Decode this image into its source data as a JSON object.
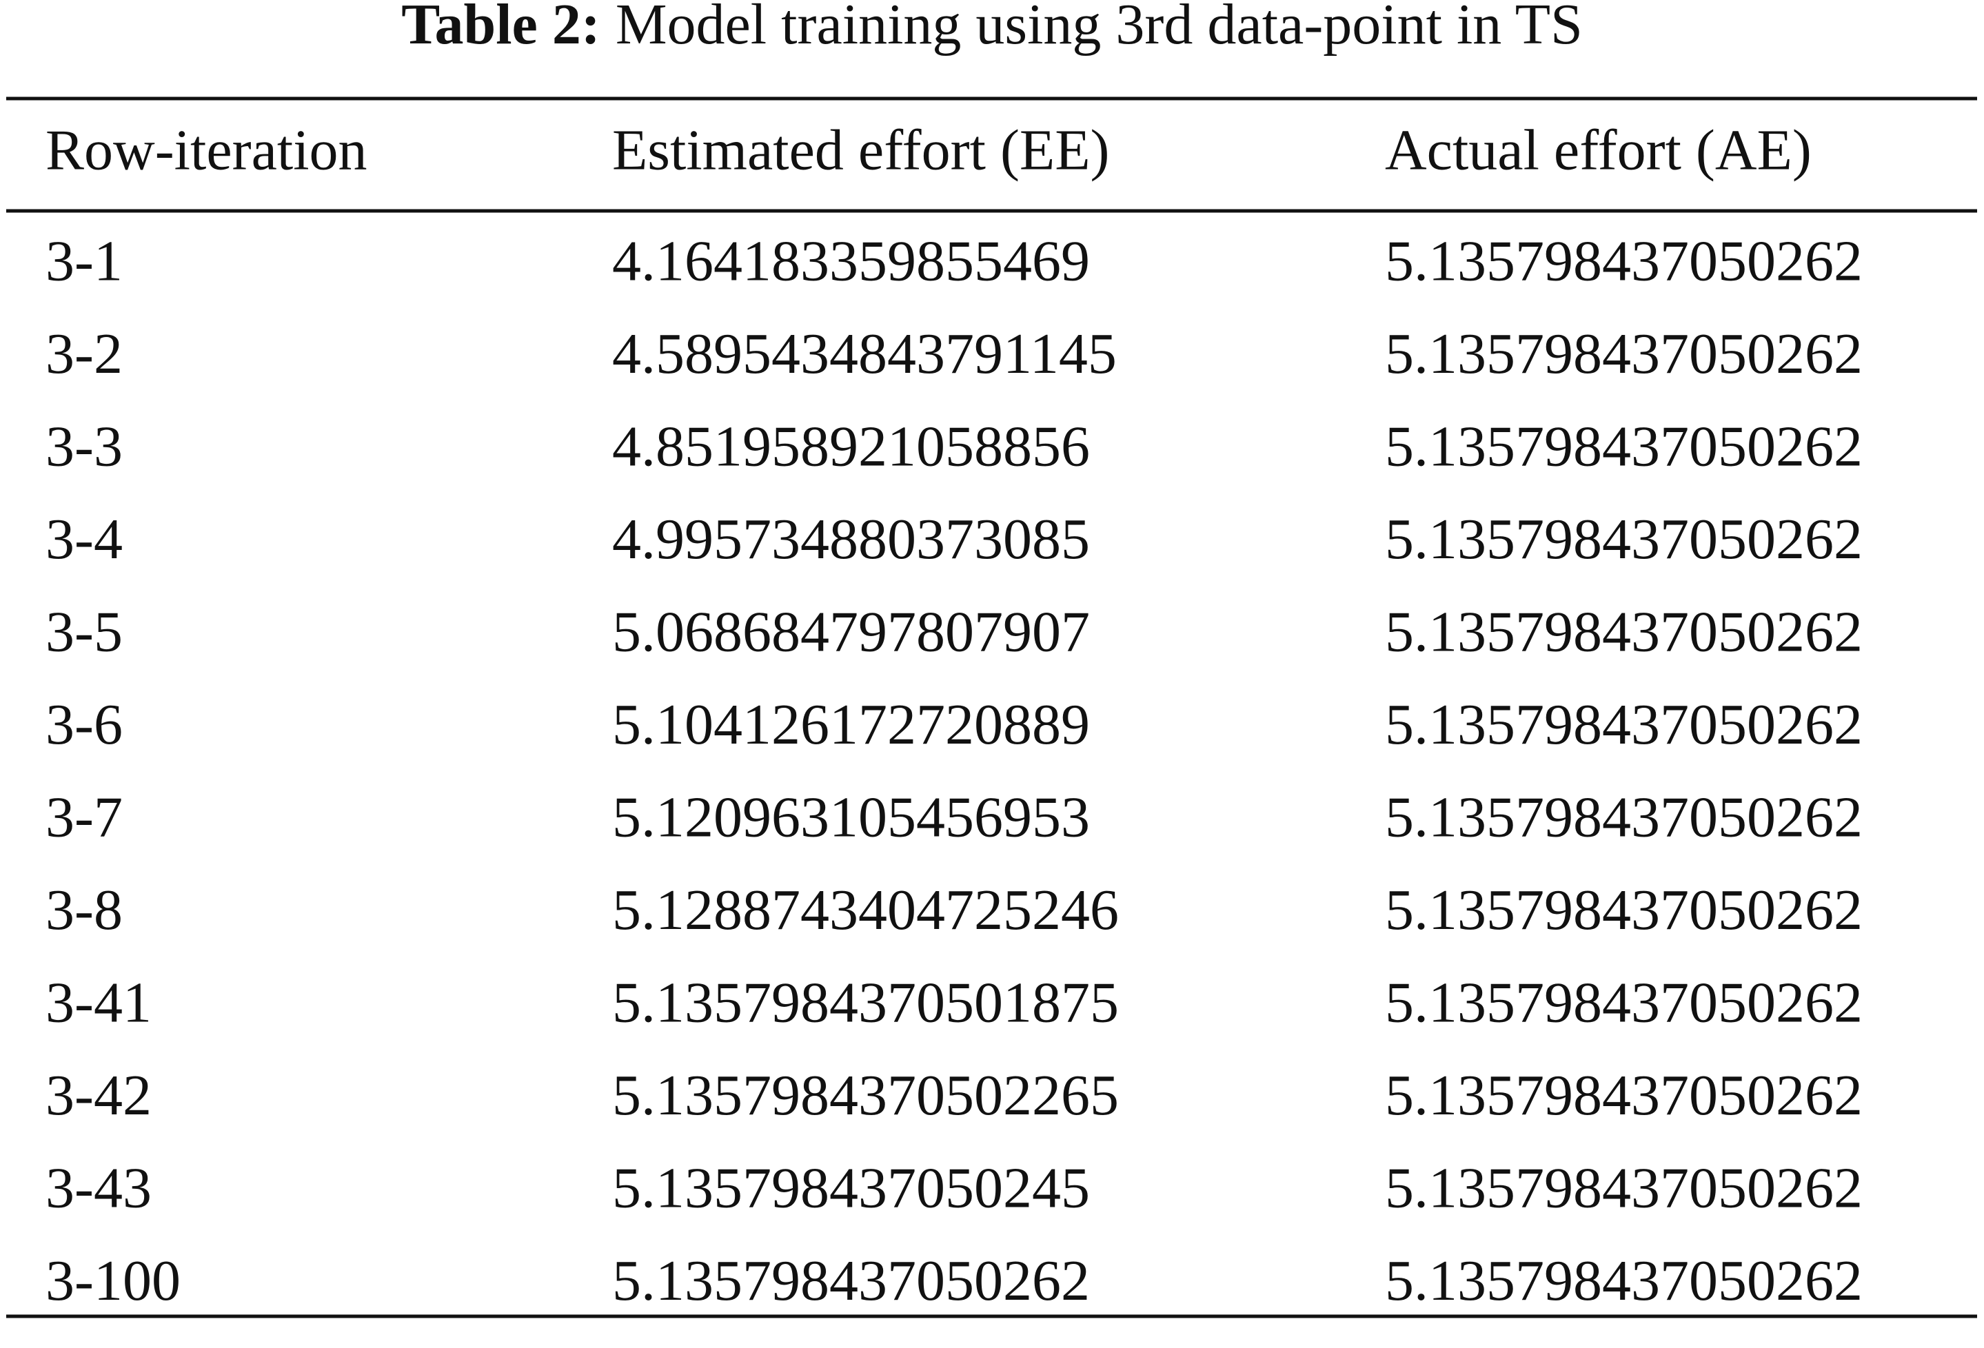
{
  "title": {
    "label": "Table 2:",
    "text": "Model training using 3rd data-point in TS"
  },
  "table": {
    "header": [
      "Row-iteration",
      "Estimated effort (EE)",
      "Actual effort (AE)"
    ],
    "rows": [
      [
        "3-1",
        "4.164183359855469",
        "5.135798437050262"
      ],
      [
        "3-2",
        "4.5895434843791145",
        "5.135798437050262"
      ],
      [
        "3-3",
        "4.851958921058856",
        "5.135798437050262"
      ],
      [
        "3-4",
        "4.995734880373085",
        "5.135798437050262"
      ],
      [
        "3-5",
        "5.068684797807907",
        "5.135798437050262"
      ],
      [
        "3-6",
        "5.104126172720889",
        "5.135798437050262"
      ],
      [
        "3-7",
        "5.120963105456953",
        "5.135798437050262"
      ],
      [
        "3-8",
        "5.1288743404725246",
        "5.135798437050262"
      ],
      [
        "3-41",
        "5.1357984370501875",
        "5.135798437050262"
      ],
      [
        "3-42",
        "5.1357984370502265",
        "5.135798437050262"
      ],
      [
        "3-43",
        "5.135798437050245",
        "5.135798437050262"
      ],
      [
        "3-100",
        "5.135798437050262",
        "5.135798437050262"
      ]
    ]
  }
}
